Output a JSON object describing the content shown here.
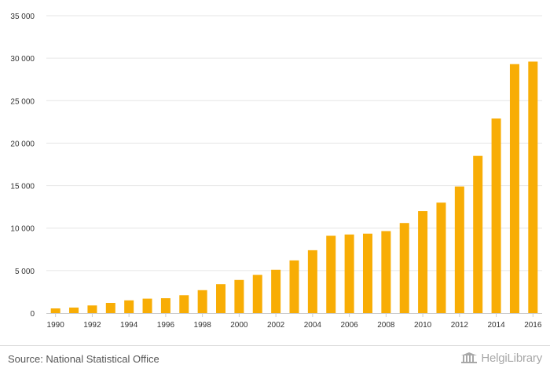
{
  "chart_data": {
    "type": "bar",
    "title": "",
    "xlabel": "",
    "ylabel": "",
    "categories": [
      1990,
      1991,
      1992,
      1993,
      1994,
      1995,
      1996,
      1997,
      1998,
      1999,
      2000,
      2001,
      2002,
      2003,
      2004,
      2005,
      2006,
      2007,
      2008,
      2009,
      2010,
      2011,
      2012,
      2013,
      2014,
      2015,
      2016
    ],
    "values": [
      550,
      650,
      900,
      1200,
      1500,
      1700,
      1750,
      2100,
      2700,
      3400,
      3900,
      4500,
      5100,
      6200,
      7400,
      9100,
      9250,
      9350,
      9650,
      10600,
      12000,
      13000,
      14900,
      18500,
      22900,
      29300,
      29600
    ],
    "ylim": [
      0,
      35000
    ],
    "yticks": [
      0,
      5000,
      10000,
      15000,
      20000,
      25000,
      30000,
      35000
    ],
    "ytick_labels": [
      "0",
      "5 000",
      "10 000",
      "15 000",
      "20 000",
      "25 000",
      "30 000",
      "35 000"
    ],
    "xtick_labels": [
      "1990",
      "1992",
      "1994",
      "1996",
      "1998",
      "2000",
      "2002",
      "2004",
      "2006",
      "2008",
      "2010",
      "2012",
      "2014",
      "2016"
    ],
    "bar_color": "#f8ad05",
    "grid": true
  },
  "footer": {
    "source": "Source: National Statistical Office",
    "logo": "HelgiLibrary"
  }
}
